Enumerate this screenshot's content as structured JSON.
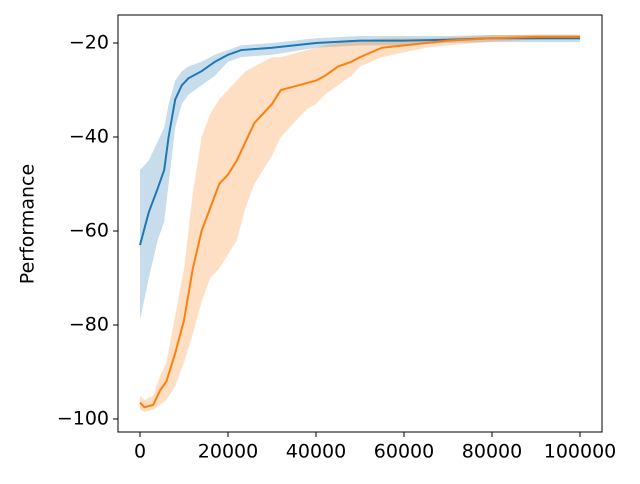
{
  "chart_data": {
    "type": "line",
    "y_label": "Performance",
    "xlim": [
      -5000,
      105000
    ],
    "ylim": [
      -102.77,
      -14.04
    ],
    "xticks": [
      0,
      20000,
      40000,
      60000,
      80000,
      100000
    ],
    "yticks": [
      {
        "value": -20,
        "label": "−20"
      },
      {
        "value": -40,
        "label": "−40"
      },
      {
        "value": -60,
        "label": "−60"
      },
      {
        "value": -80,
        "label": "−80"
      },
      {
        "value": -100,
        "label": "−100"
      }
    ],
    "series": [
      {
        "color": "#1f77b4",
        "x": [
          0,
          2000,
          4000,
          5500,
          6500,
          8000,
          9500,
          11000,
          14000,
          17000,
          20000,
          23000,
          30000,
          40000,
          50000,
          60000,
          70000,
          80000,
          90000,
          100000
        ],
        "values": [
          -63,
          -56,
          -51,
          -47,
          -40,
          -32,
          -29,
          -27.5,
          -26,
          -24,
          -22.5,
          -21.5,
          -21,
          -20,
          -19.5,
          -19.5,
          -19.3,
          -19,
          -19,
          -19
        ],
        "lower": [
          -79,
          -70,
          -62,
          -58,
          -50,
          -38,
          -33,
          -31,
          -29,
          -27,
          -24,
          -23,
          -22.5,
          -21,
          -20.5,
          -20.5,
          -20,
          -19.8,
          -19.8,
          -19.8
        ],
        "upper": [
          -47,
          -45,
          -41,
          -38,
          -33,
          -28,
          -26,
          -25,
          -24,
          -22.5,
          -21.5,
          -20.5,
          -20,
          -19,
          -18.5,
          -18.5,
          -18.5,
          -18.3,
          -18.3,
          -18.3
        ]
      },
      {
        "color": "#ff7f0e",
        "x": [
          0,
          1000,
          3000,
          4500,
          6000,
          8000,
          10000,
          12000,
          14000,
          16000,
          18000,
          20000,
          22000,
          24000,
          26000,
          28000,
          30000,
          32000,
          34000,
          36000,
          38000,
          40000,
          42000,
          45000,
          48000,
          50000,
          55000,
          60000,
          65000,
          70000,
          80000,
          90000,
          100000
        ],
        "values": [
          -96.5,
          -97.5,
          -97,
          -94,
          -92,
          -86,
          -79,
          -68,
          -60,
          -55,
          -50,
          -48,
          -45,
          -41,
          -37,
          -35,
          -33,
          -30,
          -29.5,
          -29,
          -28.5,
          -28,
          -27,
          -25,
          -24,
          -23,
          -21,
          -20.5,
          -20,
          -19.5,
          -19,
          -18.7,
          -18.7
        ],
        "lower": [
          -98,
          -98.5,
          -98,
          -97,
          -96,
          -93,
          -88,
          -82,
          -75,
          -70,
          -68,
          -65,
          -62,
          -55,
          -50,
          -47,
          -44,
          -40,
          -38,
          -36,
          -34,
          -33,
          -31,
          -29,
          -27,
          -25,
          -23,
          -22,
          -21,
          -20.5,
          -19.7,
          -19.3,
          -19.3
        ],
        "upper": [
          -95,
          -96,
          -95,
          -91,
          -88,
          -78,
          -68,
          -52,
          -40,
          -35,
          -32,
          -30,
          -28,
          -26,
          -25,
          -24,
          -23,
          -23,
          -22.5,
          -22,
          -21.5,
          -21,
          -20.5,
          -20,
          -19.5,
          -19.5,
          -19,
          -19,
          -19,
          -18.8,
          -18.3,
          -18.2,
          -18.2
        ]
      }
    ]
  }
}
